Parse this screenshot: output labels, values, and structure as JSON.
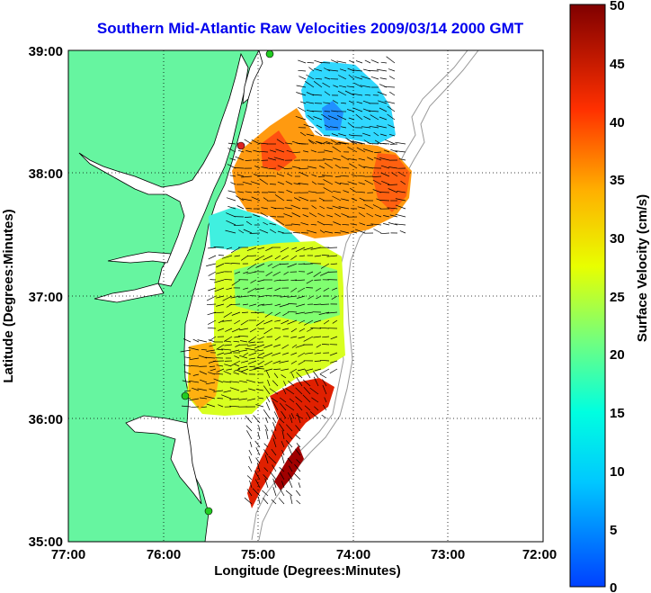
{
  "title": "Southern Mid-Atlantic Raw Velocities 2009/03/14 2000 GMT",
  "x_axis": {
    "label": "Longitude (Degrees:Minutes)",
    "ticks": [
      "77:00",
      "76:00",
      "75:00",
      "74:00",
      "73:00",
      "72:00"
    ]
  },
  "y_axis": {
    "label": "Latitude (Degrees:Minutes)",
    "ticks": [
      "39:00",
      "38:00",
      "37:00",
      "36:00",
      "35:00"
    ]
  },
  "colorbar": {
    "label": "Surface Velocity (cm/s)",
    "ticks": [
      "50",
      "45",
      "40",
      "35",
      "30",
      "25",
      "20",
      "15",
      "10",
      "5",
      "0"
    ],
    "range": [
      0,
      50
    ],
    "colormap": "jet"
  },
  "colors": {
    "land": "#66f5a0",
    "title": "#0000ee",
    "site_marker_green": "#22cc22",
    "site_marker_red": "#dd2222"
  },
  "map_extent": {
    "lon": [
      -77,
      -72
    ],
    "lat": [
      35,
      39
    ]
  },
  "grid": "dotted"
}
